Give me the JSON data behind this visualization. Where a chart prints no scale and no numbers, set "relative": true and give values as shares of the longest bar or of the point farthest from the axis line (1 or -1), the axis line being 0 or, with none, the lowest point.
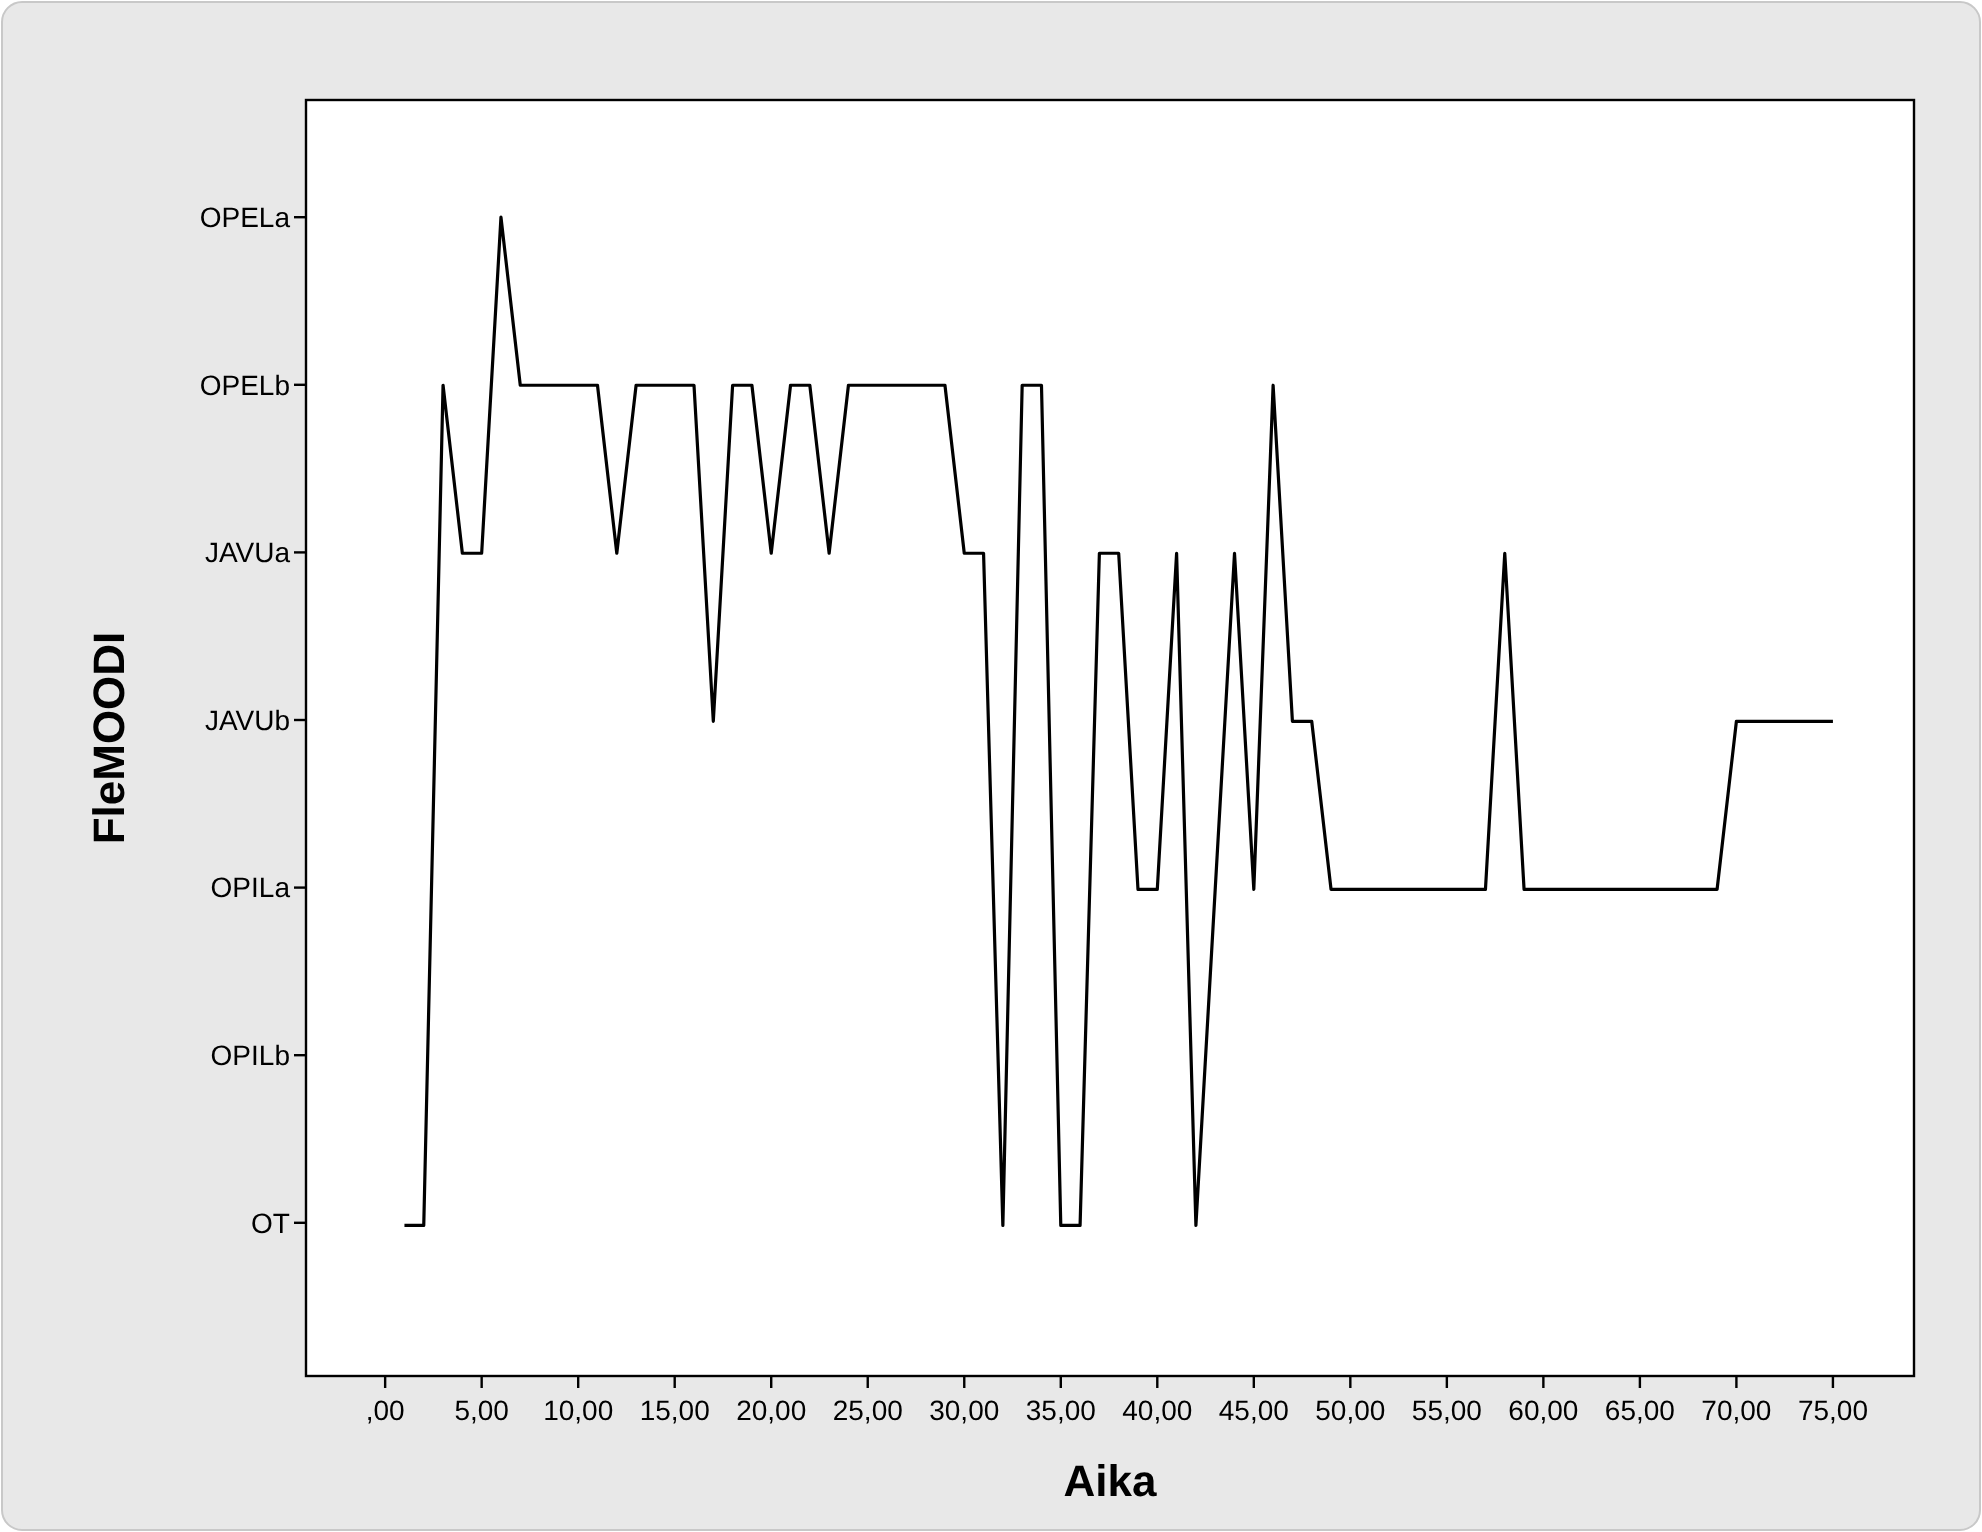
{
  "chart_data": {
    "type": "line",
    "xlabel": "Aika",
    "ylabel": "FleMOODI",
    "relative": true,
    "x": [
      1,
      2,
      3,
      4,
      5,
      6,
      7,
      8,
      9,
      10,
      11,
      12,
      13,
      14,
      15,
      16,
      17,
      18,
      19,
      20,
      21,
      22,
      23,
      24,
      25,
      26,
      27,
      28,
      29,
      30,
      31,
      32,
      33,
      34,
      35,
      36,
      37,
      38,
      39,
      40,
      41,
      42,
      43,
      44,
      45,
      46,
      47,
      48,
      49,
      50,
      51,
      52,
      53,
      54,
      55,
      56,
      57,
      58,
      59,
      60,
      61,
      62,
      63,
      64,
      65,
      66,
      67,
      68,
      69,
      70,
      71,
      72,
      73,
      74,
      75
    ],
    "series": [
      {
        "color": "#000000",
        "values": [
          0.13,
          0.13,
          0.855,
          0.71,
          0.71,
          1,
          0.855,
          0.855,
          0.855,
          0.855,
          0.855,
          0.71,
          0.855,
          0.855,
          0.855,
          0.855,
          0.565,
          0.855,
          0.855,
          0.71,
          0.855,
          0.855,
          0.71,
          0.855,
          0.855,
          0.855,
          0.855,
          0.855,
          0.855,
          0.71,
          0.71,
          0.13,
          0.855,
          0.855,
          0.13,
          0.13,
          0.71,
          0.71,
          0.42,
          0.42,
          0.71,
          0.13,
          0.42,
          0.71,
          0.42,
          0.855,
          0.565,
          0.565,
          0.42,
          0.42,
          0.42,
          0.42,
          0.42,
          0.42,
          0.42,
          0.42,
          0.42,
          0.71,
          0.42,
          0.42,
          0.42,
          0.42,
          0.42,
          0.42,
          0.42,
          0.42,
          0.42,
          0.42,
          0.42,
          0.565,
          0.565,
          0.565,
          0.565,
          0.565,
          0.565
        ]
      }
    ],
    "annotations": [
      "OT",
      "OPILb",
      "OPILa",
      "JAVUb",
      "JAVUa",
      "OPELb",
      "OPELa"
    ],
    "xlim": [
      -4.1,
      79.2
    ],
    "xticks": [
      {
        "value": 0,
        "label": ",00"
      },
      {
        "value": 5,
        "label": "5,00"
      },
      {
        "value": 10,
        "label": "10,00"
      },
      {
        "value": 15,
        "label": "15,00"
      },
      {
        "value": 20,
        "label": "20,00"
      },
      {
        "value": 25,
        "label": "25,00"
      },
      {
        "value": 30,
        "label": "30,00"
      },
      {
        "value": 35,
        "label": "35,00"
      },
      {
        "value": 40,
        "label": "40,00"
      },
      {
        "value": 45,
        "label": "45,00"
      },
      {
        "value": 50,
        "label": "50,00"
      },
      {
        "value": 55,
        "label": "55,00"
      },
      {
        "value": 60,
        "label": "60,00"
      },
      {
        "value": 65,
        "label": "65,00"
      },
      {
        "value": 70,
        "label": "70,00"
      },
      {
        "value": 75,
        "label": "75,00"
      }
    ],
    "grid": false,
    "marker": "none",
    "line_style": "solid"
  }
}
